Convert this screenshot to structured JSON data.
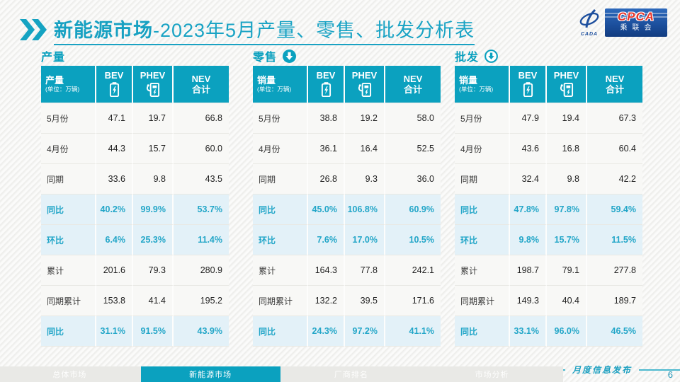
{
  "header": {
    "title_bold": "新能源市场",
    "title_rest": "-2023年5月产量、零售、批发分析表",
    "logo": {
      "swirl_sub": "CADA",
      "cpca": "CPCA",
      "cn": "乘联会"
    }
  },
  "watermark": "CPCA",
  "table_common": {
    "unit": "(单位：万辆)",
    "col_bev": "BEV",
    "col_phev": "PHEV",
    "col_nev_line1": "NEV",
    "col_nev_line2": "合计"
  },
  "tables": [
    {
      "section": "产量",
      "corner": "产量",
      "download_icon": "none",
      "rows": [
        {
          "label": "5月份",
          "highlight": false,
          "values": [
            "47.1",
            "19.7",
            "66.8"
          ]
        },
        {
          "label": "4月份",
          "highlight": false,
          "values": [
            "44.3",
            "15.7",
            "60.0"
          ]
        },
        {
          "label": "同期",
          "highlight": false,
          "values": [
            "33.6",
            "9.8",
            "43.5"
          ]
        },
        {
          "label": "同比",
          "highlight": true,
          "values": [
            "40.2%",
            "99.9%",
            "53.7%"
          ]
        },
        {
          "label": "环比",
          "highlight": true,
          "values": [
            "6.4%",
            "25.3%",
            "11.4%"
          ]
        },
        {
          "label": "累计",
          "highlight": false,
          "values": [
            "201.6",
            "79.3",
            "280.9"
          ]
        },
        {
          "label": "同期累计",
          "highlight": false,
          "values": [
            "153.8",
            "41.4",
            "195.2"
          ]
        },
        {
          "label": "同比",
          "highlight": true,
          "values": [
            "31.1%",
            "91.5%",
            "43.9%"
          ]
        }
      ]
    },
    {
      "section": "零售",
      "corner": "销量",
      "download_icon": "filled",
      "rows": [
        {
          "label": "5月份",
          "highlight": false,
          "values": [
            "38.8",
            "19.2",
            "58.0"
          ]
        },
        {
          "label": "4月份",
          "highlight": false,
          "values": [
            "36.1",
            "16.4",
            "52.5"
          ]
        },
        {
          "label": "同期",
          "highlight": false,
          "values": [
            "26.8",
            "9.3",
            "36.0"
          ]
        },
        {
          "label": "同比",
          "highlight": true,
          "values": [
            "45.0%",
            "106.8%",
            "60.9%"
          ]
        },
        {
          "label": "环比",
          "highlight": true,
          "values": [
            "7.6%",
            "17.0%",
            "10.5%"
          ]
        },
        {
          "label": "累计",
          "highlight": false,
          "values": [
            "164.3",
            "77.8",
            "242.1"
          ]
        },
        {
          "label": "同期累计",
          "highlight": false,
          "values": [
            "132.2",
            "39.5",
            "171.6"
          ]
        },
        {
          "label": "同比",
          "highlight": true,
          "values": [
            "24.3%",
            "97.2%",
            "41.1%"
          ]
        }
      ]
    },
    {
      "section": "批发",
      "corner": "销量",
      "download_icon": "outline",
      "rows": [
        {
          "label": "5月份",
          "highlight": false,
          "values": [
            "47.9",
            "19.4",
            "67.3"
          ]
        },
        {
          "label": "4月份",
          "highlight": false,
          "values": [
            "43.6",
            "16.8",
            "60.4"
          ]
        },
        {
          "label": "同期",
          "highlight": false,
          "values": [
            "32.4",
            "9.8",
            "42.2"
          ]
        },
        {
          "label": "同比",
          "highlight": true,
          "values": [
            "47.8%",
            "97.8%",
            "59.4%"
          ]
        },
        {
          "label": "环比",
          "highlight": true,
          "values": [
            "9.8%",
            "15.7%",
            "11.5%"
          ]
        },
        {
          "label": "累计",
          "highlight": false,
          "values": [
            "198.7",
            "79.1",
            "277.8"
          ]
        },
        {
          "label": "同期累计",
          "highlight": false,
          "values": [
            "149.3",
            "40.4",
            "189.7"
          ]
        },
        {
          "label": "同比",
          "highlight": true,
          "values": [
            "33.1%",
            "96.0%",
            "46.5%"
          ]
        }
      ]
    }
  ],
  "footer": {
    "release_label": "月度信息发布",
    "page_number": "6",
    "tabs": [
      {
        "label": "总体市场",
        "active": false
      },
      {
        "label": "新能源市场",
        "active": true
      },
      {
        "label": "厂商排名",
        "active": false
      },
      {
        "label": "市场分析",
        "active": false
      }
    ]
  },
  "colors": {
    "accent_teal": "#0ba1bf",
    "highlight_bg": "#e3f1f8",
    "logo_blue": "#1b4e9b",
    "logo_red": "#e8352b"
  }
}
